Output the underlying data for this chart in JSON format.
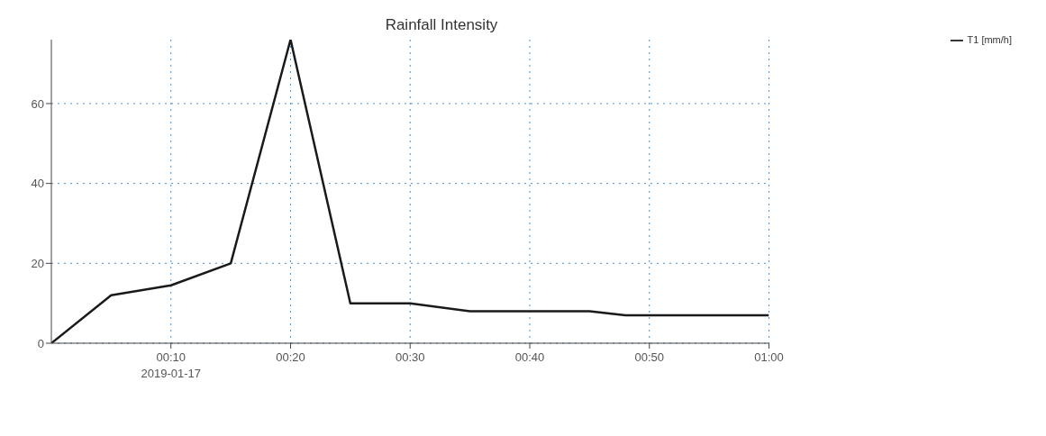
{
  "chart_data": {
    "type": "line",
    "title": "Rainfall Intensity",
    "x": [
      "2019-01-17T00:00",
      "2019-01-17T00:05",
      "2019-01-17T00:10",
      "2019-01-17T00:15",
      "2019-01-17T00:20",
      "2019-01-17T00:25",
      "2019-01-17T00:30",
      "2019-01-17T00:35",
      "2019-01-17T00:40",
      "2019-01-17T00:45",
      "2019-01-17T00:48",
      "2019-01-17T00:50",
      "2019-01-17T00:55",
      "2019-01-17T01:00"
    ],
    "series": [
      {
        "name": "T1 [mm/h]",
        "color": "#1a1a1a",
        "values": [
          0,
          12,
          14.5,
          20,
          76,
          10,
          10,
          8,
          8,
          8,
          7,
          7,
          7,
          7
        ]
      }
    ],
    "xlim": [
      "2019-01-17T00:00",
      "2019-01-17T01:00"
    ],
    "xticks": [
      {
        "value": "2019-01-17T00:10",
        "label": "00:10\n2019-01-17"
      },
      {
        "value": "2019-01-17T00:20",
        "label": "00:20"
      },
      {
        "value": "2019-01-17T00:30",
        "label": "00:30"
      },
      {
        "value": "2019-01-17T00:40",
        "label": "00:40"
      },
      {
        "value": "2019-01-17T00:50",
        "label": "00:50"
      },
      {
        "value": "2019-01-17T01:00",
        "label": "01:00"
      }
    ],
    "ylim": [
      0,
      76
    ],
    "yticks": [
      0,
      20,
      40,
      60
    ],
    "grid": true,
    "legend": "top right",
    "marker": "none",
    "line_style": "solid"
  }
}
